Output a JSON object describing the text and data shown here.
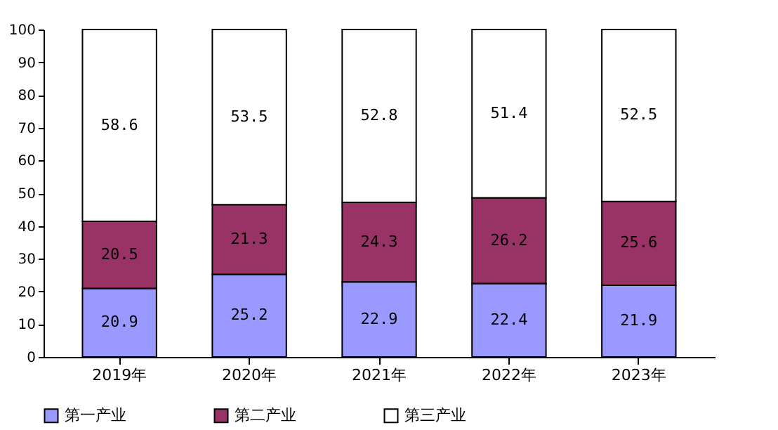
{
  "chart_data": {
    "type": "bar",
    "stacked": true,
    "categories": [
      "2019年",
      "2020年",
      "2021年",
      "2022年",
      "2023年"
    ],
    "series": [
      {
        "name": "第一产业",
        "color": "#9999ff",
        "values": [
          20.9,
          25.2,
          22.9,
          22.4,
          21.9
        ]
      },
      {
        "name": "第二产业",
        "color": "#993366",
        "values": [
          20.5,
          21.3,
          24.3,
          26.2,
          25.6
        ]
      },
      {
        "name": "第三产业",
        "color": "#ffffff",
        "values": [
          58.6,
          53.5,
          52.8,
          51.4,
          52.5
        ]
      }
    ],
    "ylim": [
      0,
      100
    ],
    "yticks": [
      0,
      10,
      20,
      30,
      40,
      50,
      60,
      70,
      80,
      90,
      100
    ],
    "legend": "bottom",
    "data_labels": true
  }
}
